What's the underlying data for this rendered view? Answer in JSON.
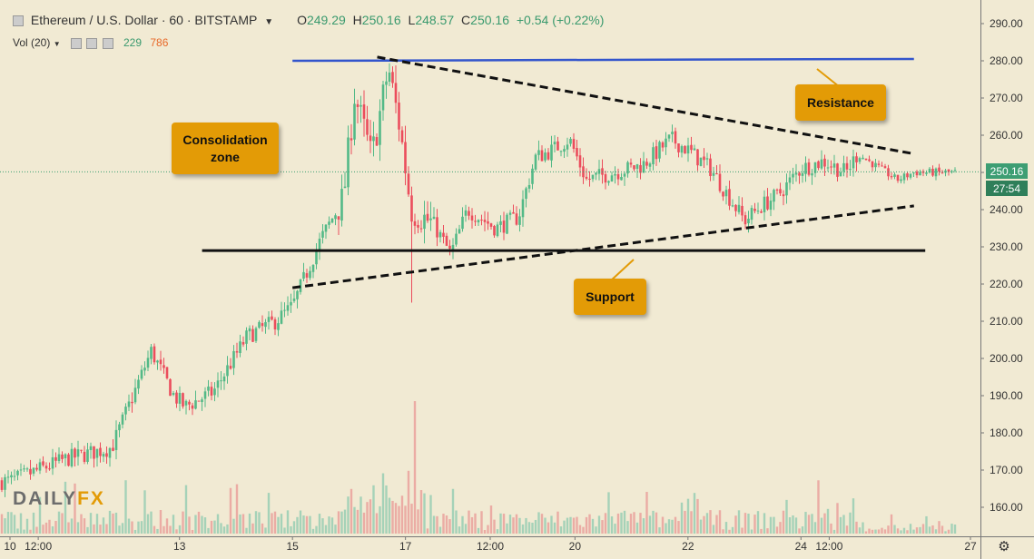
{
  "header": {
    "symbol": "Ethereum / U.S. Dollar · 60 · BITSTAMP",
    "open": "249.29",
    "high": "250.16",
    "low": "248.57",
    "close": "250.16",
    "change": "+0.54 (+0.22%)",
    "o_label": "O",
    "h_label": "H",
    "l_label": "L",
    "c_label": "C"
  },
  "volume_indicator": {
    "label": "Vol (20)",
    "value_up": "229",
    "value_down": "786"
  },
  "annotations": {
    "consolidation": "Consolidation zone",
    "resistance": "Resistance",
    "support": "Support"
  },
  "price_axis": {
    "ticks": [
      "290.00",
      "280.00",
      "270.00",
      "260.00",
      "250.00",
      "240.00",
      "230.00",
      "220.00",
      "210.00",
      "200.00",
      "190.00",
      "180.00",
      "170.00",
      "160.00"
    ],
    "last_price": "250.16",
    "countdown": "27:54"
  },
  "time_axis": {
    "ticks": [
      "10",
      "12:00",
      "13",
      "15",
      "17",
      "12:00",
      "20",
      "22",
      "24",
      "12:00",
      "27"
    ]
  },
  "logo": {
    "part1": "DAILY",
    "part2": "FX"
  },
  "colors": {
    "up": "#53b987",
    "down": "#eb4d5c",
    "resistance_line": "#3355cc",
    "annotation": "#e39b06",
    "background": "#f1ead3"
  },
  "chart_data": {
    "type": "candlestick",
    "title": "Ethereum / U.S. Dollar · 60 · BITSTAMP",
    "ylim": [
      155,
      293
    ],
    "anchors": [
      {
        "x": 10.0,
        "price": 167
      },
      {
        "x": 11.0,
        "price": 173
      },
      {
        "x": 11.8,
        "price": 176
      },
      {
        "x": 12.5,
        "price": 202
      },
      {
        "x": 12.9,
        "price": 190
      },
      {
        "x": 13.1,
        "price": 187
      },
      {
        "x": 13.6,
        "price": 191
      },
      {
        "x": 14.2,
        "price": 206
      },
      {
        "x": 14.7,
        "price": 210
      },
      {
        "x": 15.0,
        "price": 214
      },
      {
        "x": 15.5,
        "price": 232
      },
      {
        "x": 15.9,
        "price": 243
      },
      {
        "x": 16.1,
        "price": 271
      },
      {
        "x": 16.4,
        "price": 254
      },
      {
        "x": 16.7,
        "price": 278
      },
      {
        "x": 16.9,
        "price": 262
      },
      {
        "x": 17.1,
        "price": 240
      },
      {
        "x": 17.5,
        "price": 236
      },
      {
        "x": 17.8,
        "price": 228
      },
      {
        "x": 18.1,
        "price": 240
      },
      {
        "x": 18.6,
        "price": 235
      },
      {
        "x": 19.0,
        "price": 238
      },
      {
        "x": 19.3,
        "price": 254
      },
      {
        "x": 19.6,
        "price": 256
      },
      {
        "x": 19.9,
        "price": 259
      },
      {
        "x": 20.2,
        "price": 248
      },
      {
        "x": 20.7,
        "price": 250
      },
      {
        "x": 21.2,
        "price": 252
      },
      {
        "x": 21.7,
        "price": 259
      },
      {
        "x": 22.0,
        "price": 256
      },
      {
        "x": 22.4,
        "price": 251
      },
      {
        "x": 22.7,
        "price": 244
      },
      {
        "x": 23.0,
        "price": 237
      },
      {
        "x": 23.3,
        "price": 241
      },
      {
        "x": 23.6,
        "price": 244
      },
      {
        "x": 24.0,
        "price": 251
      },
      {
        "x": 24.4,
        "price": 253
      },
      {
        "x": 24.8,
        "price": 250
      },
      {
        "x": 25.0,
        "price": 255
      },
      {
        "x": 25.4,
        "price": 251
      },
      {
        "x": 25.7,
        "price": 248
      },
      {
        "x": 26.0,
        "price": 250
      }
    ],
    "trendlines": [
      {
        "name": "resistance",
        "points": [
          [
            15.0,
            280
          ],
          [
            26.0,
            280.5
          ]
        ],
        "style": "solid"
      },
      {
        "name": "horizontal-support",
        "points": [
          [
            13.4,
            229
          ],
          [
            26.2,
            229
          ]
        ],
        "style": "solid"
      },
      {
        "name": "upper-triangle",
        "points": [
          [
            16.5,
            281
          ],
          [
            26.0,
            255
          ]
        ],
        "style": "dashed"
      },
      {
        "name": "lower-triangle",
        "points": [
          [
            15.0,
            219
          ],
          [
            26.0,
            241
          ]
        ],
        "style": "dashed"
      }
    ]
  }
}
